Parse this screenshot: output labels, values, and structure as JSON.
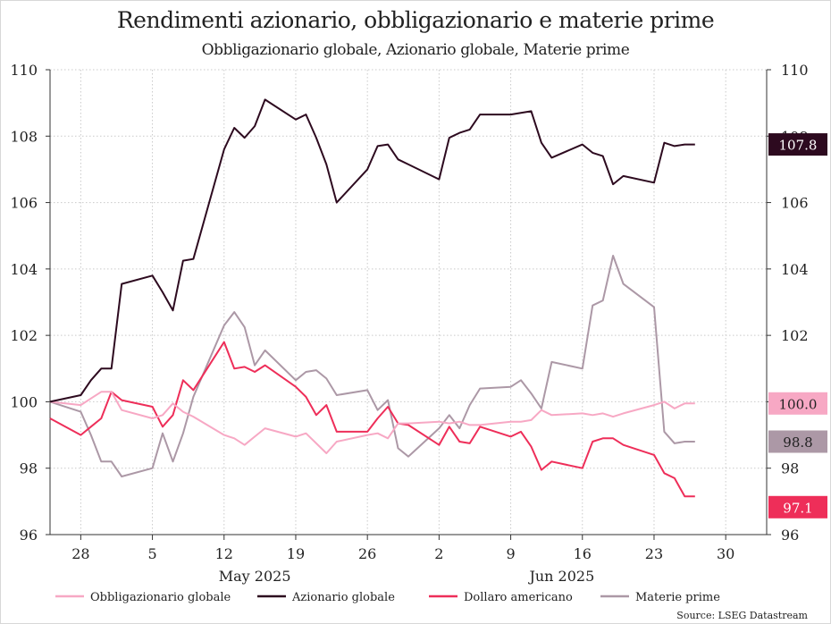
{
  "chart_data": {
    "type": "line",
    "title": "Rendimenti azionario, obbligazionario e materie prime",
    "subtitle": "Obbligazionario globale, Azionario globale, Materie prime",
    "source": "Source: LSEG Datastream",
    "ylim": [
      96,
      110
    ],
    "y_ticks": [
      "96",
      "98",
      "100",
      "102",
      "104",
      "106",
      "108",
      "110"
    ],
    "x_ticks": [
      "28",
      "5",
      "12",
      "19",
      "26",
      "2",
      "9",
      "16",
      "23",
      "30"
    ],
    "month_labels": [
      "May 2025",
      "Jun 2025"
    ],
    "grid": true,
    "legend_position": "bottom",
    "x": [
      "2025-04-25",
      "2025-04-28",
      "2025-04-29",
      "2025-04-30",
      "2025-05-01",
      "2025-05-02",
      "2025-05-05",
      "2025-05-06",
      "2025-05-07",
      "2025-05-08",
      "2025-05-09",
      "2025-05-12",
      "2025-05-13",
      "2025-05-14",
      "2025-05-15",
      "2025-05-16",
      "2025-05-19",
      "2025-05-20",
      "2025-05-21",
      "2025-05-22",
      "2025-05-23",
      "2025-05-26",
      "2025-05-27",
      "2025-05-28",
      "2025-05-29",
      "2025-05-30",
      "2025-06-02",
      "2025-06-03",
      "2025-06-04",
      "2025-06-05",
      "2025-06-06",
      "2025-06-09",
      "2025-06-10",
      "2025-06-11",
      "2025-06-12",
      "2025-06-13",
      "2025-06-16",
      "2025-06-17",
      "2025-06-18",
      "2025-06-19",
      "2025-06-20",
      "2025-06-23",
      "2025-06-24",
      "2025-06-25",
      "2025-06-26",
      "2025-06-27"
    ],
    "series": [
      {
        "name": "Obbligazionario globale",
        "color": "#f7a8c4",
        "last_label": "100.0",
        "values": [
          100.0,
          99.9,
          100.1,
          100.3,
          100.3,
          99.75,
          99.5,
          99.6,
          99.95,
          99.7,
          99.55,
          99.0,
          98.9,
          98.7,
          98.95,
          99.2,
          98.95,
          99.05,
          98.75,
          98.45,
          98.8,
          99.0,
          99.05,
          98.9,
          99.35,
          99.35,
          99.4,
          99.35,
          99.4,
          99.3,
          99.3,
          99.4,
          99.4,
          99.45,
          99.75,
          99.6,
          99.65,
          99.6,
          99.65,
          99.55,
          99.65,
          99.9,
          100.0,
          99.8,
          99.95,
          99.95
        ]
      },
      {
        "name": "Azionario globale",
        "color": "#2d0a1f",
        "last_label": "107.8",
        "values": [
          100.0,
          100.2,
          100.65,
          101.0,
          101.0,
          103.55,
          103.8,
          103.3,
          102.75,
          104.25,
          104.3,
          107.6,
          108.25,
          107.95,
          108.3,
          109.1,
          108.5,
          108.65,
          107.95,
          107.15,
          106.0,
          107.0,
          107.7,
          107.75,
          107.3,
          107.15,
          106.7,
          107.95,
          108.1,
          108.2,
          108.65,
          108.65,
          108.7,
          108.75,
          107.8,
          107.35,
          107.75,
          107.5,
          107.4,
          106.55,
          106.8,
          106.6,
          107.8,
          107.7,
          107.75,
          107.75
        ]
      },
      {
        "name": "Dollaro americano",
        "color": "#ee2e59",
        "last_label": "97.1",
        "values": [
          99.5,
          99.0,
          99.25,
          99.5,
          100.3,
          100.05,
          99.85,
          99.25,
          99.6,
          100.65,
          100.35,
          101.8,
          101.0,
          101.05,
          100.9,
          101.1,
          100.45,
          100.15,
          99.6,
          99.9,
          99.1,
          99.1,
          99.5,
          99.85,
          99.35,
          99.3,
          98.7,
          99.25,
          98.8,
          98.75,
          99.25,
          98.95,
          99.1,
          98.65,
          97.95,
          98.2,
          98.0,
          98.8,
          98.9,
          98.9,
          98.7,
          98.4,
          97.85,
          97.7,
          97.15,
          97.15
        ]
      },
      {
        "name": "Materie prime",
        "color": "#ac98a6",
        "last_label": "98.8",
        "values": [
          100.0,
          99.7,
          99.0,
          98.2,
          98.2,
          97.75,
          98.0,
          99.05,
          98.2,
          99.05,
          100.15,
          102.3,
          102.7,
          102.25,
          101.1,
          101.55,
          100.65,
          100.9,
          100.95,
          100.7,
          100.2,
          100.35,
          99.75,
          100.05,
          98.6,
          98.35,
          99.2,
          99.6,
          99.2,
          99.9,
          100.4,
          100.45,
          100.65,
          100.25,
          99.8,
          101.2,
          101.0,
          102.9,
          103.05,
          104.4,
          103.55,
          102.85,
          99.1,
          98.75,
          98.8,
          98.8
        ]
      }
    ]
  }
}
